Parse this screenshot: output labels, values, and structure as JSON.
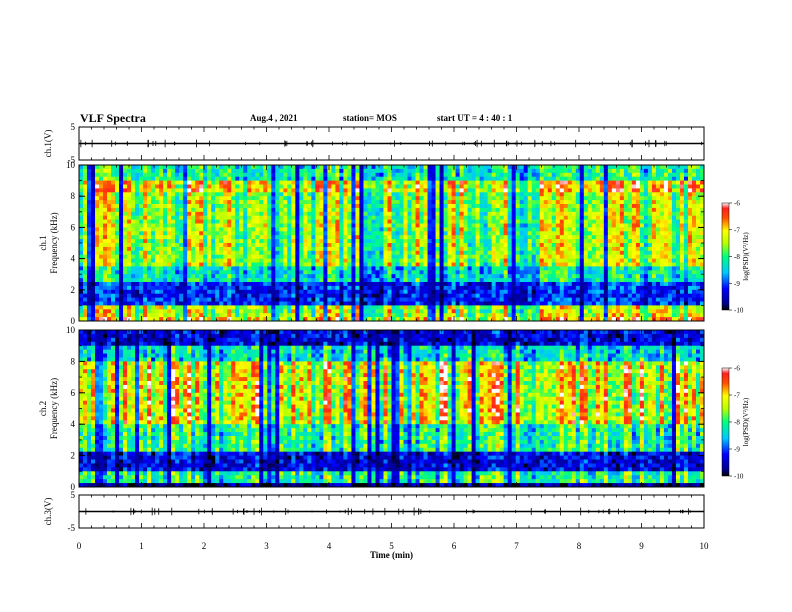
{
  "header": {
    "title": "VLF Spectra",
    "date": "Aug.4 , 2021",
    "station": "station= MOS",
    "start": "start UT = 4 : 40 : 1"
  },
  "chart_data": [
    {
      "type": "line",
      "panel": "ch1-waveform",
      "ylabel": "ch.1(V)",
      "ylim": [
        -5,
        5
      ],
      "yticks": [
        "5",
        "-5"
      ],
      "xlim": [
        0,
        10
      ],
      "series": [
        {
          "values": [
            0,
            0
          ]
        }
      ]
    },
    {
      "type": "heatmap",
      "panel": "ch1-spectrogram",
      "ylabel_line1": "ch.1",
      "ylabel_line2": "Frequency (kHz)",
      "ylim": [
        0,
        10
      ],
      "yticks": [
        "0",
        "2",
        "4",
        "6",
        "8",
        "10"
      ],
      "xlim": [
        0,
        10
      ],
      "colorbar": {
        "label": "log(PSD)(V²/Hz)",
        "range": [
          -10,
          -6
        ],
        "ticks": [
          "-6",
          "-7",
          "-8",
          "-9",
          "-10"
        ]
      }
    },
    {
      "type": "heatmap",
      "panel": "ch2-spectrogram",
      "ylabel_line1": "ch.2",
      "ylabel_line2": "Frequency (kHz)",
      "ylim": [
        0,
        10
      ],
      "yticks": [
        "0",
        "2",
        "4",
        "6",
        "8",
        "10"
      ],
      "xlim": [
        0,
        10
      ],
      "colorbar": {
        "label": "log(PSD)(V²/Hz)",
        "range": [
          -10,
          -6
        ],
        "ticks": [
          "-6",
          "-7",
          "-8",
          "-9",
          "-10"
        ]
      }
    },
    {
      "type": "line",
      "panel": "ch3-waveform",
      "ylabel": "ch.3(V)",
      "ylim": [
        -5,
        5
      ],
      "yticks": [
        "5",
        "-5"
      ],
      "xlim": [
        0,
        10
      ],
      "xlabel": "Time (min)",
      "xticks": [
        "0",
        "1",
        "2",
        "3",
        "4",
        "5",
        "6",
        "7",
        "8",
        "9",
        "10"
      ],
      "series": [
        {
          "values": [
            0,
            0
          ]
        }
      ]
    }
  ]
}
